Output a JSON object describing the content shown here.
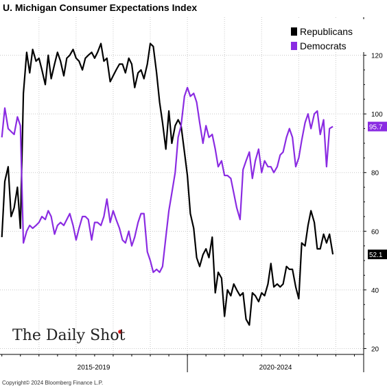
{
  "header": {
    "title": "U. Michigan Consumer Expectations Index"
  },
  "footer": {
    "copyright": "Copyright© 2024 Bloomberg Finance L.P."
  },
  "brand": {
    "text": "The Daily Shot",
    "mark": "®"
  },
  "colors": {
    "republicans": "#000000",
    "democrats": "#8a2be2",
    "grid": "#c8c8c8",
    "brand_dot": "#e0181b"
  },
  "chart_data": {
    "type": "line",
    "title": "U. Michigan Consumer Expectations Index",
    "xlabel": "",
    "ylabel": "",
    "x_range": [
      2014.95,
      2024.75
    ],
    "ylim": [
      18,
      133
    ],
    "y_ticks": [
      20,
      40,
      60,
      80,
      100,
      120
    ],
    "y_axis_side": "right",
    "x_groups": [
      {
        "label": "2015-2019",
        "start": 2014.95,
        "end": 2020.0
      },
      {
        "label": "2020-2024",
        "start": 2020.0,
        "end": 2024.75
      }
    ],
    "grid": true,
    "legend_position": "top-right",
    "series": [
      {
        "name": "Republicans",
        "color": "#000000",
        "last_value_label": "52.1",
        "points": [
          [
            2015.0,
            58
          ],
          [
            2015.08,
            77
          ],
          [
            2015.17,
            82
          ],
          [
            2015.25,
            65
          ],
          [
            2015.33,
            68
          ],
          [
            2015.42,
            75
          ],
          [
            2015.5,
            61
          ],
          [
            2015.58,
            107
          ],
          [
            2015.67,
            121
          ],
          [
            2015.75,
            114
          ],
          [
            2015.83,
            122
          ],
          [
            2015.92,
            118
          ],
          [
            2016.0,
            119
          ],
          [
            2016.08,
            115
          ],
          [
            2016.17,
            110
          ],
          [
            2016.25,
            120
          ],
          [
            2016.33,
            112
          ],
          [
            2016.42,
            117
          ],
          [
            2016.5,
            121
          ],
          [
            2016.58,
            118
          ],
          [
            2016.67,
            113
          ],
          [
            2016.75,
            119
          ],
          [
            2016.83,
            120
          ],
          [
            2016.92,
            122
          ],
          [
            2017.0,
            119
          ],
          [
            2017.08,
            118
          ],
          [
            2017.17,
            115
          ],
          [
            2017.25,
            119
          ],
          [
            2017.33,
            120
          ],
          [
            2017.42,
            121
          ],
          [
            2017.5,
            119
          ],
          [
            2017.58,
            121
          ],
          [
            2017.67,
            124
          ],
          [
            2017.75,
            118
          ],
          [
            2017.83,
            119
          ],
          [
            2017.92,
            111
          ],
          [
            2018.0,
            113
          ],
          [
            2018.08,
            115
          ],
          [
            2018.17,
            117
          ],
          [
            2018.25,
            117
          ],
          [
            2018.33,
            114
          ],
          [
            2018.42,
            119
          ],
          [
            2018.5,
            117
          ],
          [
            2018.58,
            109
          ],
          [
            2018.67,
            114
          ],
          [
            2018.75,
            115
          ],
          [
            2018.83,
            112
          ],
          [
            2018.92,
            117
          ],
          [
            2019.0,
            124
          ],
          [
            2019.08,
            123
          ],
          [
            2019.17,
            114
          ],
          [
            2019.25,
            104
          ],
          [
            2019.33,
            97
          ],
          [
            2019.42,
            88
          ],
          [
            2019.5,
            101
          ],
          [
            2019.58,
            90
          ],
          [
            2019.67,
            96
          ],
          [
            2019.75,
            98
          ],
          [
            2019.83,
            96
          ],
          [
            2019.92,
            87
          ],
          [
            2020.0,
            79
          ],
          [
            2020.08,
            66
          ],
          [
            2020.17,
            61
          ],
          [
            2020.25,
            51
          ],
          [
            2020.33,
            48
          ],
          [
            2020.42,
            52
          ],
          [
            2020.5,
            54
          ],
          [
            2020.58,
            51
          ],
          [
            2020.67,
            58
          ],
          [
            2020.75,
            39
          ],
          [
            2020.83,
            46
          ],
          [
            2020.92,
            44
          ],
          [
            2021.0,
            31
          ],
          [
            2021.08,
            40
          ],
          [
            2021.17,
            38
          ],
          [
            2021.25,
            42
          ],
          [
            2021.33,
            40
          ],
          [
            2021.42,
            38
          ],
          [
            2021.5,
            39
          ],
          [
            2021.58,
            30
          ],
          [
            2021.67,
            28
          ],
          [
            2021.75,
            39
          ],
          [
            2021.83,
            38
          ],
          [
            2021.92,
            36
          ],
          [
            2022.0,
            39
          ],
          [
            2022.08,
            38
          ],
          [
            2022.17,
            42
          ],
          [
            2022.25,
            49
          ],
          [
            2022.33,
            41
          ],
          [
            2022.42,
            42
          ],
          [
            2022.5,
            41
          ],
          [
            2022.58,
            42
          ],
          [
            2022.67,
            48
          ],
          [
            2022.75,
            47
          ],
          [
            2022.83,
            47
          ],
          [
            2022.92,
            41
          ],
          [
            2023.0,
            37
          ],
          [
            2023.08,
            56
          ],
          [
            2023.17,
            55
          ],
          [
            2023.25,
            62
          ],
          [
            2023.33,
            67
          ],
          [
            2023.42,
            63
          ],
          [
            2023.5,
            54
          ],
          [
            2023.58,
            54
          ],
          [
            2023.67,
            59
          ],
          [
            2023.75,
            56
          ],
          [
            2023.83,
            59
          ],
          [
            2023.92,
            52.1
          ]
        ]
      },
      {
        "name": "Democrats",
        "color": "#8a2be2",
        "last_value_label": "95.7",
        "points": [
          [
            2015.0,
            92
          ],
          [
            2015.08,
            102
          ],
          [
            2015.17,
            95
          ],
          [
            2015.25,
            94
          ],
          [
            2015.33,
            93
          ],
          [
            2015.42,
            99
          ],
          [
            2015.5,
            96
          ],
          [
            2015.58,
            56
          ],
          [
            2015.67,
            60
          ],
          [
            2015.75,
            62
          ],
          [
            2015.83,
            61
          ],
          [
            2015.92,
            62
          ],
          [
            2016.0,
            63
          ],
          [
            2016.08,
            65
          ],
          [
            2016.17,
            64
          ],
          [
            2016.25,
            67
          ],
          [
            2016.33,
            65
          ],
          [
            2016.42,
            59
          ],
          [
            2016.5,
            62
          ],
          [
            2016.58,
            63
          ],
          [
            2016.67,
            62
          ],
          [
            2016.75,
            64
          ],
          [
            2016.83,
            66
          ],
          [
            2016.92,
            62
          ],
          [
            2017.0,
            57
          ],
          [
            2017.08,
            61
          ],
          [
            2017.17,
            65
          ],
          [
            2017.25,
            65
          ],
          [
            2017.33,
            64
          ],
          [
            2017.42,
            57
          ],
          [
            2017.5,
            63
          ],
          [
            2017.58,
            63
          ],
          [
            2017.67,
            62
          ],
          [
            2017.75,
            65
          ],
          [
            2017.83,
            71
          ],
          [
            2017.92,
            63
          ],
          [
            2018.0,
            67
          ],
          [
            2018.08,
            64
          ],
          [
            2018.17,
            61
          ],
          [
            2018.25,
            57
          ],
          [
            2018.33,
            56
          ],
          [
            2018.42,
            60
          ],
          [
            2018.5,
            55
          ],
          [
            2018.58,
            58
          ],
          [
            2018.67,
            63
          ],
          [
            2018.75,
            66
          ],
          [
            2018.83,
            66
          ],
          [
            2018.92,
            53
          ],
          [
            2019.0,
            50
          ],
          [
            2019.08,
            46
          ],
          [
            2019.17,
            47
          ],
          [
            2019.25,
            46
          ],
          [
            2019.33,
            48
          ],
          [
            2019.42,
            58
          ],
          [
            2019.5,
            67
          ],
          [
            2019.58,
            73
          ],
          [
            2019.67,
            80
          ],
          [
            2019.75,
            92
          ],
          [
            2019.83,
            96
          ],
          [
            2019.92,
            106
          ],
          [
            2020.0,
            109
          ],
          [
            2020.08,
            106
          ],
          [
            2020.17,
            107
          ],
          [
            2020.25,
            104
          ],
          [
            2020.33,
            97
          ],
          [
            2020.42,
            90
          ],
          [
            2020.5,
            96
          ],
          [
            2020.58,
            92
          ],
          [
            2020.67,
            93
          ],
          [
            2020.75,
            88
          ],
          [
            2020.83,
            82
          ],
          [
            2020.92,
            84
          ],
          [
            2021.0,
            79
          ],
          [
            2021.08,
            79
          ],
          [
            2021.17,
            78
          ],
          [
            2021.25,
            73
          ],
          [
            2021.33,
            68
          ],
          [
            2021.42,
            64
          ],
          [
            2021.5,
            81
          ],
          [
            2021.58,
            84
          ],
          [
            2021.67,
            87
          ],
          [
            2021.75,
            78
          ],
          [
            2021.83,
            84
          ],
          [
            2021.92,
            88
          ],
          [
            2022.0,
            80
          ],
          [
            2022.08,
            84
          ],
          [
            2022.17,
            82
          ],
          [
            2022.25,
            82
          ],
          [
            2022.33,
            80
          ],
          [
            2022.42,
            82
          ],
          [
            2022.5,
            86
          ],
          [
            2022.58,
            87
          ],
          [
            2022.67,
            92
          ],
          [
            2022.75,
            95
          ],
          [
            2022.83,
            92
          ],
          [
            2022.92,
            82
          ],
          [
            2023.0,
            85
          ],
          [
            2023.08,
            91
          ],
          [
            2023.17,
            97
          ],
          [
            2023.25,
            100
          ],
          [
            2023.33,
            95
          ],
          [
            2023.42,
            100
          ],
          [
            2023.5,
            101
          ],
          [
            2023.58,
            93
          ],
          [
            2023.67,
            98
          ],
          [
            2023.75,
            82
          ],
          [
            2023.83,
            95
          ],
          [
            2023.92,
            95.7
          ]
        ]
      }
    ]
  }
}
